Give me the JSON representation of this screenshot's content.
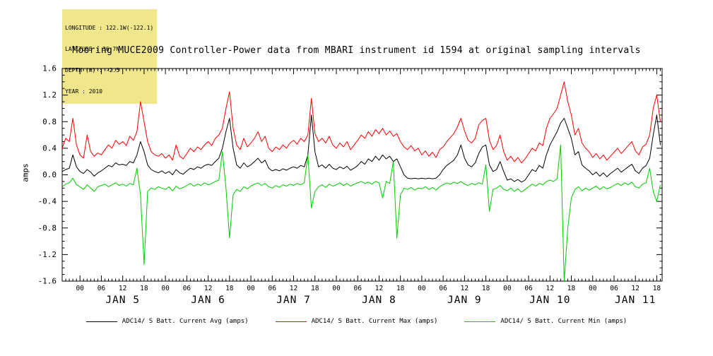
{
  "header_info": {
    "bg_color": "#f0e68c",
    "lines": [
      "LONGITUDE : 122.1W(-122.1)",
      "LATITUDE : 36.7N",
      "DEPTH (m) : -2.5",
      "YEAR : 2010"
    ]
  },
  "title": "Mooring MUCE2009 Controller-Power data from MBARI instrument id 1594 at original sampling intervals",
  "chart_data": {
    "type": "line",
    "title": "Mooring MUCE2009 Controller-Power data from MBARI instrument id 1594 at original sampling intervals",
    "xlabel": "",
    "ylabel": "amps",
    "ylim": [
      -1.6,
      1.6
    ],
    "y_tick_step": 0.4,
    "y_minor_step": 0.1,
    "y_tick_labels": [
      "-1.6",
      "-1.2",
      "-0.8",
      "-0.4",
      "0.0",
      "0.4",
      "0.8",
      "1.2",
      "1.6"
    ],
    "xlim_hours": [
      -5,
      163.5
    ],
    "x_major_tick_hours": 6,
    "x_minor_tick_hours": 1,
    "x_tick_label_cycle": [
      "00",
      "06",
      "12",
      "18"
    ],
    "day_labels": [
      "JAN 5",
      "JAN 6",
      "JAN 7",
      "JAN 8",
      "JAN 9",
      "JAN 10",
      "JAN 11"
    ],
    "grid": false,
    "legend_position": "bottom",
    "x_start": -5,
    "x_step": 1,
    "x_units": "hours from JAN 5 00:00, year 2010",
    "series": [
      {
        "name": "ADC14/ S Batt. Current Avg (amps)",
        "color": "#000000",
        "values": [
          0.05,
          0.08,
          0.1,
          0.3,
          0.12,
          0.05,
          0.02,
          0.08,
          0.04,
          -0.02,
          0.03,
          0.06,
          0.1,
          0.14,
          0.12,
          0.18,
          0.15,
          0.16,
          0.14,
          0.2,
          0.18,
          0.3,
          0.5,
          0.35,
          0.15,
          0.08,
          0.05,
          0.03,
          0.06,
          0.02,
          0.05,
          0.0,
          0.08,
          0.03,
          0.01,
          0.06,
          0.1,
          0.08,
          0.12,
          0.1,
          0.14,
          0.16,
          0.14,
          0.2,
          0.25,
          0.4,
          0.65,
          0.85,
          0.4,
          0.15,
          0.1,
          0.18,
          0.12,
          0.15,
          0.2,
          0.25,
          0.18,
          0.22,
          0.1,
          0.06,
          0.08,
          0.06,
          0.09,
          0.07,
          0.1,
          0.12,
          0.1,
          0.14,
          0.12,
          0.3,
          0.9,
          0.35,
          0.12,
          0.15,
          0.1,
          0.16,
          0.1,
          0.08,
          0.12,
          0.09,
          0.13,
          0.07,
          0.1,
          0.14,
          0.2,
          0.16,
          0.24,
          0.2,
          0.28,
          0.22,
          0.3,
          0.24,
          0.28,
          0.2,
          0.24,
          0.12,
          0.0,
          -0.05,
          -0.06,
          -0.05,
          -0.06,
          -0.05,
          -0.06,
          -0.05,
          -0.06,
          -0.05,
          0.0,
          0.08,
          0.14,
          0.18,
          0.22,
          0.3,
          0.45,
          0.25,
          0.15,
          0.12,
          0.18,
          0.32,
          0.42,
          0.45,
          0.15,
          0.05,
          0.08,
          0.2,
          0.05,
          -0.08,
          -0.06,
          -0.1,
          -0.07,
          -0.11,
          -0.08,
          0.0,
          0.08,
          0.05,
          0.14,
          0.1,
          0.3,
          0.45,
          0.55,
          0.65,
          0.78,
          0.85,
          0.7,
          0.55,
          0.3,
          0.35,
          0.15,
          0.1,
          0.06,
          0.0,
          0.04,
          -0.02,
          0.03,
          -0.03,
          0.02,
          0.06,
          0.1,
          0.04,
          0.08,
          0.12,
          0.16,
          0.06,
          0.02,
          0.1,
          0.14,
          0.25,
          0.6,
          0.9,
          0.45
        ]
      },
      {
        "name": "ADC14/ S Batt. Current Max (amps)",
        "color": "#ff0000",
        "values": [
          0.4,
          0.55,
          0.5,
          0.85,
          0.45,
          0.3,
          0.25,
          0.6,
          0.35,
          0.28,
          0.33,
          0.3,
          0.38,
          0.45,
          0.4,
          0.52,
          0.46,
          0.5,
          0.44,
          0.58,
          0.52,
          0.65,
          1.1,
          0.8,
          0.5,
          0.35,
          0.3,
          0.28,
          0.32,
          0.25,
          0.3,
          0.22,
          0.45,
          0.28,
          0.24,
          0.32,
          0.4,
          0.35,
          0.42,
          0.38,
          0.45,
          0.5,
          0.44,
          0.55,
          0.6,
          0.7,
          1.0,
          1.25,
          0.7,
          0.45,
          0.38,
          0.55,
          0.42,
          0.48,
          0.55,
          0.65,
          0.5,
          0.58,
          0.4,
          0.35,
          0.42,
          0.38,
          0.45,
          0.4,
          0.48,
          0.52,
          0.46,
          0.55,
          0.5,
          0.6,
          1.15,
          0.62,
          0.5,
          0.55,
          0.48,
          0.58,
          0.45,
          0.4,
          0.48,
          0.42,
          0.5,
          0.38,
          0.45,
          0.52,
          0.6,
          0.55,
          0.65,
          0.58,
          0.68,
          0.62,
          0.7,
          0.6,
          0.66,
          0.58,
          0.62,
          0.5,
          0.42,
          0.38,
          0.44,
          0.36,
          0.4,
          0.3,
          0.36,
          0.28,
          0.34,
          0.26,
          0.38,
          0.42,
          0.5,
          0.56,
          0.62,
          0.72,
          0.85,
          0.66,
          0.52,
          0.48,
          0.55,
          0.75,
          0.82,
          0.85,
          0.52,
          0.38,
          0.44,
          0.6,
          0.35,
          0.22,
          0.28,
          0.2,
          0.26,
          0.18,
          0.24,
          0.32,
          0.4,
          0.36,
          0.48,
          0.44,
          0.7,
          0.85,
          0.92,
          1.0,
          1.2,
          1.4,
          1.1,
          0.9,
          0.6,
          0.7,
          0.48,
          0.4,
          0.35,
          0.26,
          0.32,
          0.24,
          0.3,
          0.22,
          0.28,
          0.34,
          0.4,
          0.32,
          0.38,
          0.44,
          0.5,
          0.36,
          0.3,
          0.42,
          0.46,
          0.6,
          1.0,
          1.2,
          0.8
        ]
      },
      {
        "name": "ADC14/ S Batt. Current Min (amps)",
        "color": "#00cc00",
        "values": [
          -0.18,
          -0.14,
          -0.12,
          -0.05,
          -0.15,
          -0.18,
          -0.22,
          -0.15,
          -0.2,
          -0.25,
          -0.18,
          -0.16,
          -0.14,
          -0.18,
          -0.15,
          -0.12,
          -0.16,
          -0.14,
          -0.17,
          -0.13,
          -0.15,
          0.1,
          -0.3,
          -1.35,
          -0.25,
          -0.2,
          -0.22,
          -0.18,
          -0.2,
          -0.22,
          -0.18,
          -0.24,
          -0.17,
          -0.21,
          -0.19,
          -0.16,
          -0.13,
          -0.17,
          -0.14,
          -0.16,
          -0.12,
          -0.15,
          -0.13,
          -0.1,
          -0.08,
          0.35,
          -0.2,
          -0.95,
          -0.3,
          -0.22,
          -0.25,
          -0.18,
          -0.21,
          -0.17,
          -0.14,
          -0.12,
          -0.16,
          -0.13,
          -0.18,
          -0.2,
          -0.16,
          -0.19,
          -0.15,
          -0.17,
          -0.14,
          -0.16,
          -0.13,
          -0.15,
          -0.12,
          0.3,
          -0.5,
          -0.25,
          -0.18,
          -0.15,
          -0.19,
          -0.14,
          -0.17,
          -0.15,
          -0.12,
          -0.16,
          -0.13,
          -0.17,
          -0.14,
          -0.12,
          -0.1,
          -0.13,
          -0.11,
          -0.14,
          -0.1,
          -0.12,
          -0.35,
          -0.1,
          -0.13,
          0.2,
          -0.95,
          -0.3,
          -0.2,
          -0.22,
          -0.19,
          -0.23,
          -0.2,
          -0.21,
          -0.18,
          -0.22,
          -0.19,
          -0.23,
          -0.18,
          -0.15,
          -0.12,
          -0.14,
          -0.11,
          -0.13,
          -0.1,
          -0.14,
          -0.16,
          -0.13,
          -0.15,
          -0.12,
          -0.14,
          0.15,
          -0.55,
          -0.22,
          -0.2,
          -0.16,
          -0.22,
          -0.24,
          -0.2,
          -0.25,
          -0.21,
          -0.26,
          -0.22,
          -0.18,
          -0.14,
          -0.17,
          -0.13,
          -0.15,
          -0.1,
          -0.08,
          -0.1,
          -0.06,
          0.45,
          -1.6,
          -0.8,
          -0.35,
          -0.22,
          -0.18,
          -0.24,
          -0.2,
          -0.23,
          -0.2,
          -0.17,
          -0.22,
          -0.18,
          -0.21,
          -0.19,
          -0.16,
          -0.13,
          -0.16,
          -0.12,
          -0.15,
          -0.11,
          -0.18,
          -0.2,
          -0.14,
          -0.12,
          0.1,
          -0.25,
          -0.4,
          -0.15
        ]
      }
    ]
  }
}
